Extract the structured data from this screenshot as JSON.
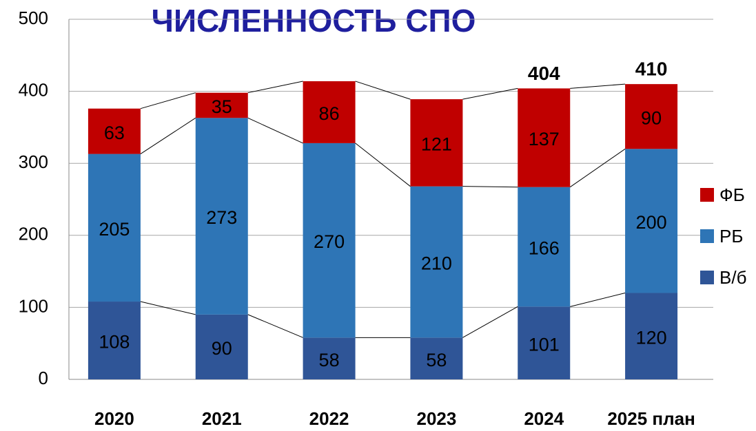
{
  "chart_data": {
    "type": "stacked_bar",
    "title": "ЧИСЛЕННОСТЬ СПО",
    "categories": [
      "2020",
      "2021",
      "2022",
      "2023",
      "2024",
      "2025 план"
    ],
    "series": [
      {
        "name": "В/б",
        "color": "#2f5597",
        "values": [
          108,
          90,
          58,
          58,
          101,
          120
        ]
      },
      {
        "name": "РБ",
        "color": "#2e75b6",
        "values": [
          205,
          273,
          270,
          210,
          166,
          200
        ]
      },
      {
        "name": "ФБ",
        "color": "#c00000",
        "values": [
          63,
          35,
          86,
          121,
          137,
          90
        ]
      }
    ],
    "totals": [
      null,
      null,
      null,
      null,
      404,
      410
    ],
    "ylim": [
      0,
      500
    ],
    "yticks": [
      0,
      100,
      200,
      300,
      400,
      500
    ],
    "grid": true,
    "legend": "right"
  }
}
